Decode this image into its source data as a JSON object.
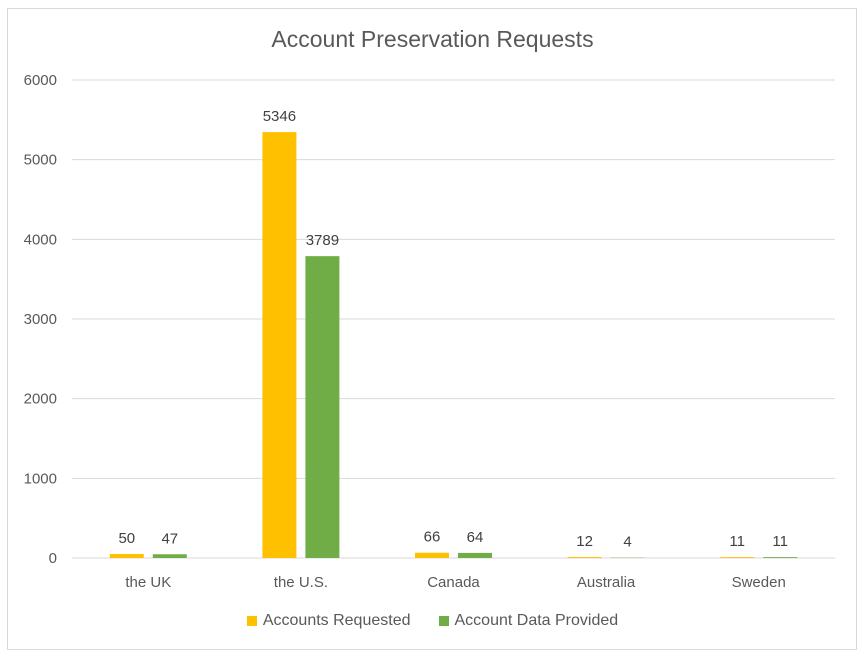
{
  "chart_data": {
    "type": "bar",
    "title": "Account Preservation Requests",
    "categories": [
      "the UK",
      "the U.S.",
      "Canada",
      "Australia",
      "Sweden"
    ],
    "series": [
      {
        "name": "Accounts Requested",
        "color": "#ffc000",
        "values": [
          50,
          5346,
          66,
          12,
          11
        ]
      },
      {
        "name": "Account Data Provided",
        "color": "#70ad47",
        "values": [
          47,
          3789,
          64,
          4,
          11
        ]
      }
    ],
    "ylim": [
      0,
      6000
    ],
    "yticks": [
      0,
      1000,
      2000,
      3000,
      4000,
      5000,
      6000
    ],
    "grid": true,
    "legend": "bottom"
  }
}
